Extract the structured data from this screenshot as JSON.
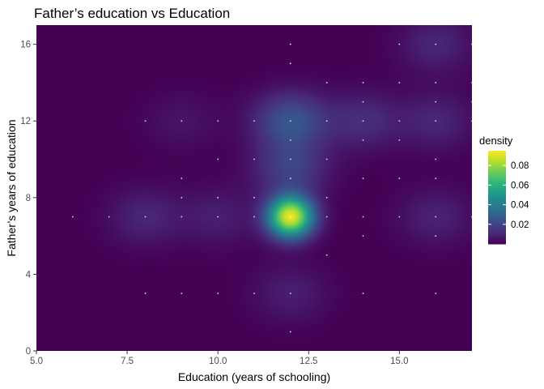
{
  "chart_data": {
    "type": "heatmap",
    "title": "Father’s education vs Education",
    "xlabel": "Education (years of schooling)",
    "ylabel": "Father’s years of education",
    "xlim": [
      5.0,
      17.0
    ],
    "ylim": [
      0,
      17
    ],
    "x_ticks": [
      "5.0",
      "7.5",
      "10.0",
      "12.5",
      "15.0"
    ],
    "x_tick_values": [
      5.0,
      7.5,
      10.0,
      12.5,
      15.0
    ],
    "y_ticks": [
      "0",
      "4",
      "8",
      "12",
      "16"
    ],
    "y_tick_values": [
      0,
      4,
      8,
      12,
      16
    ],
    "grid": false,
    "fill": "2D kernel density estimate",
    "density_peaks": [
      {
        "x": 12,
        "y": 7,
        "density": 0.092
      },
      {
        "x": 12,
        "y": 12,
        "density": 0.025
      },
      {
        "x": 12,
        "y": 9.5,
        "density": 0.018
      },
      {
        "x": 8,
        "y": 7,
        "density": 0.01
      },
      {
        "x": 10,
        "y": 7,
        "density": 0.008
      },
      {
        "x": 14,
        "y": 12,
        "density": 0.012
      },
      {
        "x": 16,
        "y": 12,
        "density": 0.01
      },
      {
        "x": 16,
        "y": 7,
        "density": 0.009
      },
      {
        "x": 16,
        "y": 16,
        "density": 0.01
      },
      {
        "x": 12,
        "y": 3,
        "density": 0.008
      },
      {
        "x": 9,
        "y": 12,
        "density": 0.005
      }
    ],
    "observations": [
      {
        "x": 6,
        "y": 7
      },
      {
        "x": 7,
        "y": 7
      },
      {
        "x": 8,
        "y": 7
      },
      {
        "x": 9,
        "y": 7
      },
      {
        "x": 10,
        "y": 7
      },
      {
        "x": 11,
        "y": 7
      },
      {
        "x": 12,
        "y": 7
      },
      {
        "x": 13,
        "y": 7
      },
      {
        "x": 14,
        "y": 7
      },
      {
        "x": 15,
        "y": 7
      },
      {
        "x": 16,
        "y": 7
      },
      {
        "x": 17,
        "y": 7
      },
      {
        "x": 8,
        "y": 12
      },
      {
        "x": 9,
        "y": 12
      },
      {
        "x": 10,
        "y": 12
      },
      {
        "x": 11,
        "y": 12
      },
      {
        "x": 12,
        "y": 12
      },
      {
        "x": 13,
        "y": 12
      },
      {
        "x": 14,
        "y": 12
      },
      {
        "x": 15,
        "y": 12
      },
      {
        "x": 16,
        "y": 12
      },
      {
        "x": 17,
        "y": 12
      },
      {
        "x": 12,
        "y": 9
      },
      {
        "x": 12,
        "y": 10
      },
      {
        "x": 12,
        "y": 11
      },
      {
        "x": 12,
        "y": 3
      },
      {
        "x": 12,
        "y": 1
      },
      {
        "x": 12,
        "y": 15
      },
      {
        "x": 12,
        "y": 16
      },
      {
        "x": 8,
        "y": 3
      },
      {
        "x": 9,
        "y": 3
      },
      {
        "x": 10,
        "y": 3
      },
      {
        "x": 11,
        "y": 3
      },
      {
        "x": 14,
        "y": 3
      },
      {
        "x": 16,
        "y": 3
      },
      {
        "x": 9,
        "y": 8
      },
      {
        "x": 10,
        "y": 8
      },
      {
        "x": 11,
        "y": 8
      },
      {
        "x": 13,
        "y": 8
      },
      {
        "x": 10,
        "y": 10
      },
      {
        "x": 11,
        "y": 10
      },
      {
        "x": 13,
        "y": 10
      },
      {
        "x": 9,
        "y": 9
      },
      {
        "x": 14,
        "y": 9
      },
      {
        "x": 16,
        "y": 9
      },
      {
        "x": 14,
        "y": 11
      },
      {
        "x": 15,
        "y": 11
      },
      {
        "x": 16,
        "y": 10
      },
      {
        "x": 13,
        "y": 14
      },
      {
        "x": 14,
        "y": 14
      },
      {
        "x": 15,
        "y": 14
      },
      {
        "x": 16,
        "y": 14
      },
      {
        "x": 17,
        "y": 14
      },
      {
        "x": 15,
        "y": 16
      },
      {
        "x": 16,
        "y": 16
      },
      {
        "x": 17,
        "y": 16
      },
      {
        "x": 14,
        "y": 13
      },
      {
        "x": 16,
        "y": 13
      },
      {
        "x": 17,
        "y": 13
      },
      {
        "x": 13,
        "y": 5
      },
      {
        "x": 14,
        "y": 6
      },
      {
        "x": 16,
        "y": 6
      },
      {
        "x": 15,
        "y": 9
      }
    ],
    "legend": {
      "title": "density",
      "position": "right",
      "labels": [
        "0.08",
        "0.06",
        "0.04",
        "0.02"
      ],
      "values": [
        0.08,
        0.06,
        0.04,
        0.02
      ],
      "range": [
        0,
        0.095
      ],
      "colormap": "viridis"
    }
  }
}
